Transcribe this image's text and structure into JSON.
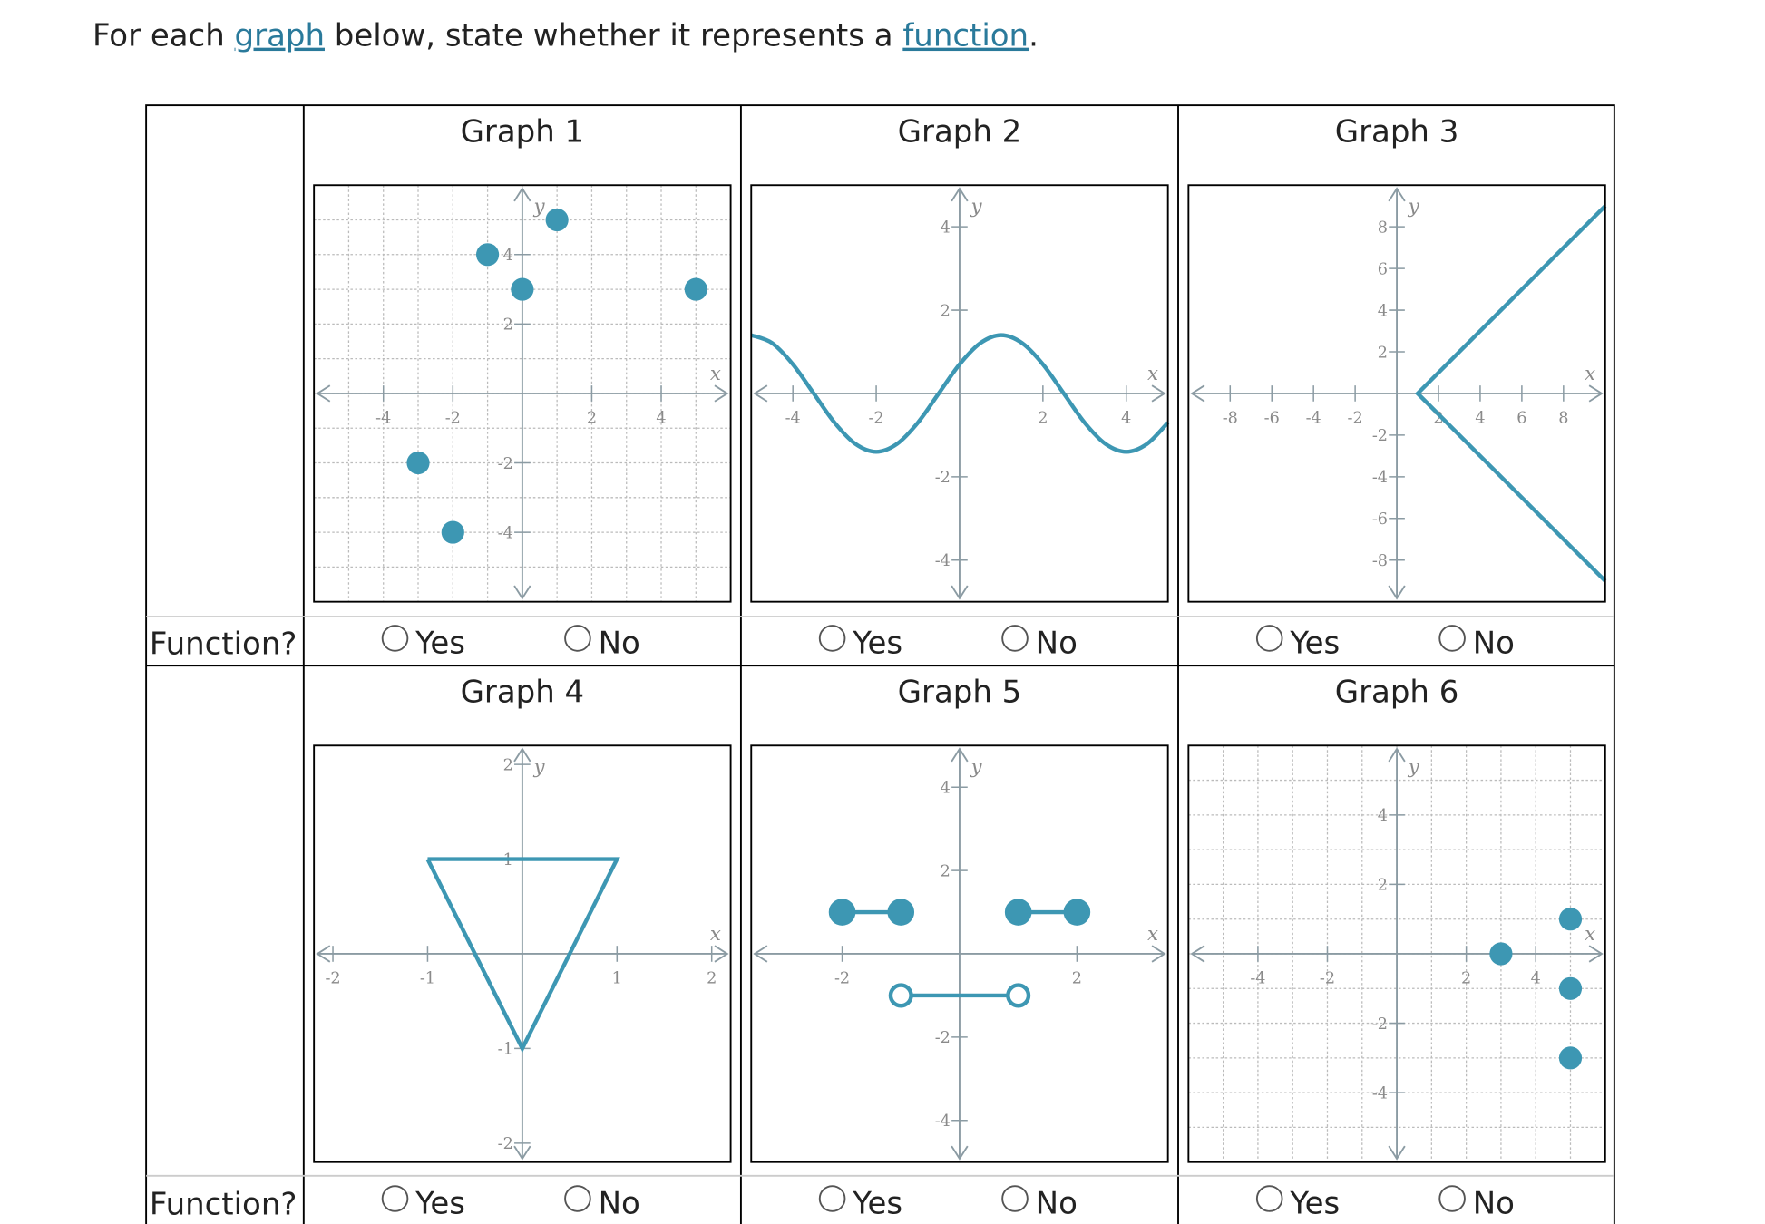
{
  "instruction": [
    "For each ",
    "graph",
    " below, state whether it represents a ",
    "function",
    "."
  ],
  "rows": [
    {
      "label": "Function?",
      "graphs": [
        {
          "title": "Graph 1",
          "type": "points",
          "x_label": "x",
          "y_label": "y",
          "xlim": [
            -6,
            6
          ],
          "ylim": [
            -6,
            6
          ],
          "xticks": [
            -4,
            -2,
            2,
            4
          ],
          "yticks": [
            -4,
            -2,
            2,
            4
          ],
          "grid": true,
          "x": [
            -3,
            -2,
            -1,
            0,
            1,
            5
          ],
          "y": [
            -2,
            -4,
            4,
            3,
            5,
            3
          ],
          "options": [
            "Yes",
            "No"
          ]
        },
        {
          "title": "Graph 2",
          "type": "curve",
          "x_label": "x",
          "y_label": "y",
          "xlim": [
            -5,
            5
          ],
          "ylim": [
            -5,
            5
          ],
          "xticks": [
            -4,
            -2,
            2,
            4
          ],
          "yticks": [
            -4,
            -2,
            2,
            4
          ],
          "grid": false,
          "x": [
            -5,
            -4.5,
            -4,
            -3.5,
            -3,
            -2.5,
            -2,
            -1.5,
            -1,
            -0.5,
            0,
            0.5,
            1,
            1.5,
            2,
            2.5,
            3,
            3.5,
            4,
            4.5,
            5
          ],
          "y": [
            1.4,
            1.21,
            0.7,
            0,
            -0.7,
            -1.21,
            -1.4,
            -1.21,
            -0.7,
            0,
            0.7,
            1.21,
            1.4,
            1.21,
            0.7,
            0,
            -0.7,
            -1.21,
            -1.4,
            -1.21,
            -0.7
          ],
          "options": [
            "Yes",
            "No"
          ]
        },
        {
          "title": "Graph 3",
          "type": "polyline",
          "x_label": "x",
          "y_label": "y",
          "xlim": [
            -10,
            10
          ],
          "ylim": [
            -10,
            10
          ],
          "xticks": [
            -8,
            -6,
            -4,
            -2,
            2,
            4,
            6,
            8
          ],
          "yticks": [
            -8,
            -6,
            -4,
            -2,
            2,
            4,
            6,
            8
          ],
          "grid": false,
          "x": [
            10,
            1,
            10
          ],
          "y": [
            9,
            0,
            -9
          ],
          "options": [
            "Yes",
            "No"
          ]
        }
      ]
    },
    {
      "label": "Function?",
      "graphs": [
        {
          "title": "Graph 4",
          "type": "polyline",
          "x_label": "x",
          "y_label": "y",
          "xlim": [
            -2.2,
            2.2
          ],
          "ylim": [
            -2.2,
            2.2
          ],
          "xticks": [
            -2,
            -1,
            1,
            2
          ],
          "yticks": [
            -2,
            -1,
            1,
            2
          ],
          "grid": false,
          "x": [
            -1,
            1,
            0,
            -1
          ],
          "y": [
            1,
            1,
            -1,
            1
          ],
          "options": [
            "Yes",
            "No"
          ]
        },
        {
          "title": "Graph 5",
          "type": "segments",
          "x_label": "x",
          "y_label": "y",
          "xlim": [
            -3.55,
            3.55
          ],
          "ylim": [
            -5,
            5
          ],
          "xticks": [
            -2,
            2
          ],
          "yticks": [
            -4,
            -2,
            2,
            4
          ],
          "grid": false,
          "segments": [
            {
              "x": [
                -2,
                -1
              ],
              "y": [
                1,
                1
              ],
              "closed": [
                true,
                true
              ]
            },
            {
              "x": [
                -1,
                1
              ],
              "y": [
                -1,
                -1
              ],
              "closed": [
                false,
                false
              ]
            },
            {
              "x": [
                1,
                2
              ],
              "y": [
                1,
                1
              ],
              "closed": [
                true,
                true
              ]
            }
          ],
          "options": [
            "Yes",
            "No"
          ]
        },
        {
          "title": "Graph 6",
          "type": "points",
          "x_label": "x",
          "y_label": "y",
          "xlim": [
            -6,
            6
          ],
          "ylim": [
            -6,
            6
          ],
          "xticks": [
            -4,
            -2,
            2,
            4
          ],
          "yticks": [
            -4,
            -2,
            2,
            4
          ],
          "grid": true,
          "x": [
            3,
            5,
            5,
            5
          ],
          "y": [
            0,
            1,
            -1,
            -3
          ],
          "options": [
            "Yes",
            "No"
          ]
        }
      ]
    }
  ]
}
